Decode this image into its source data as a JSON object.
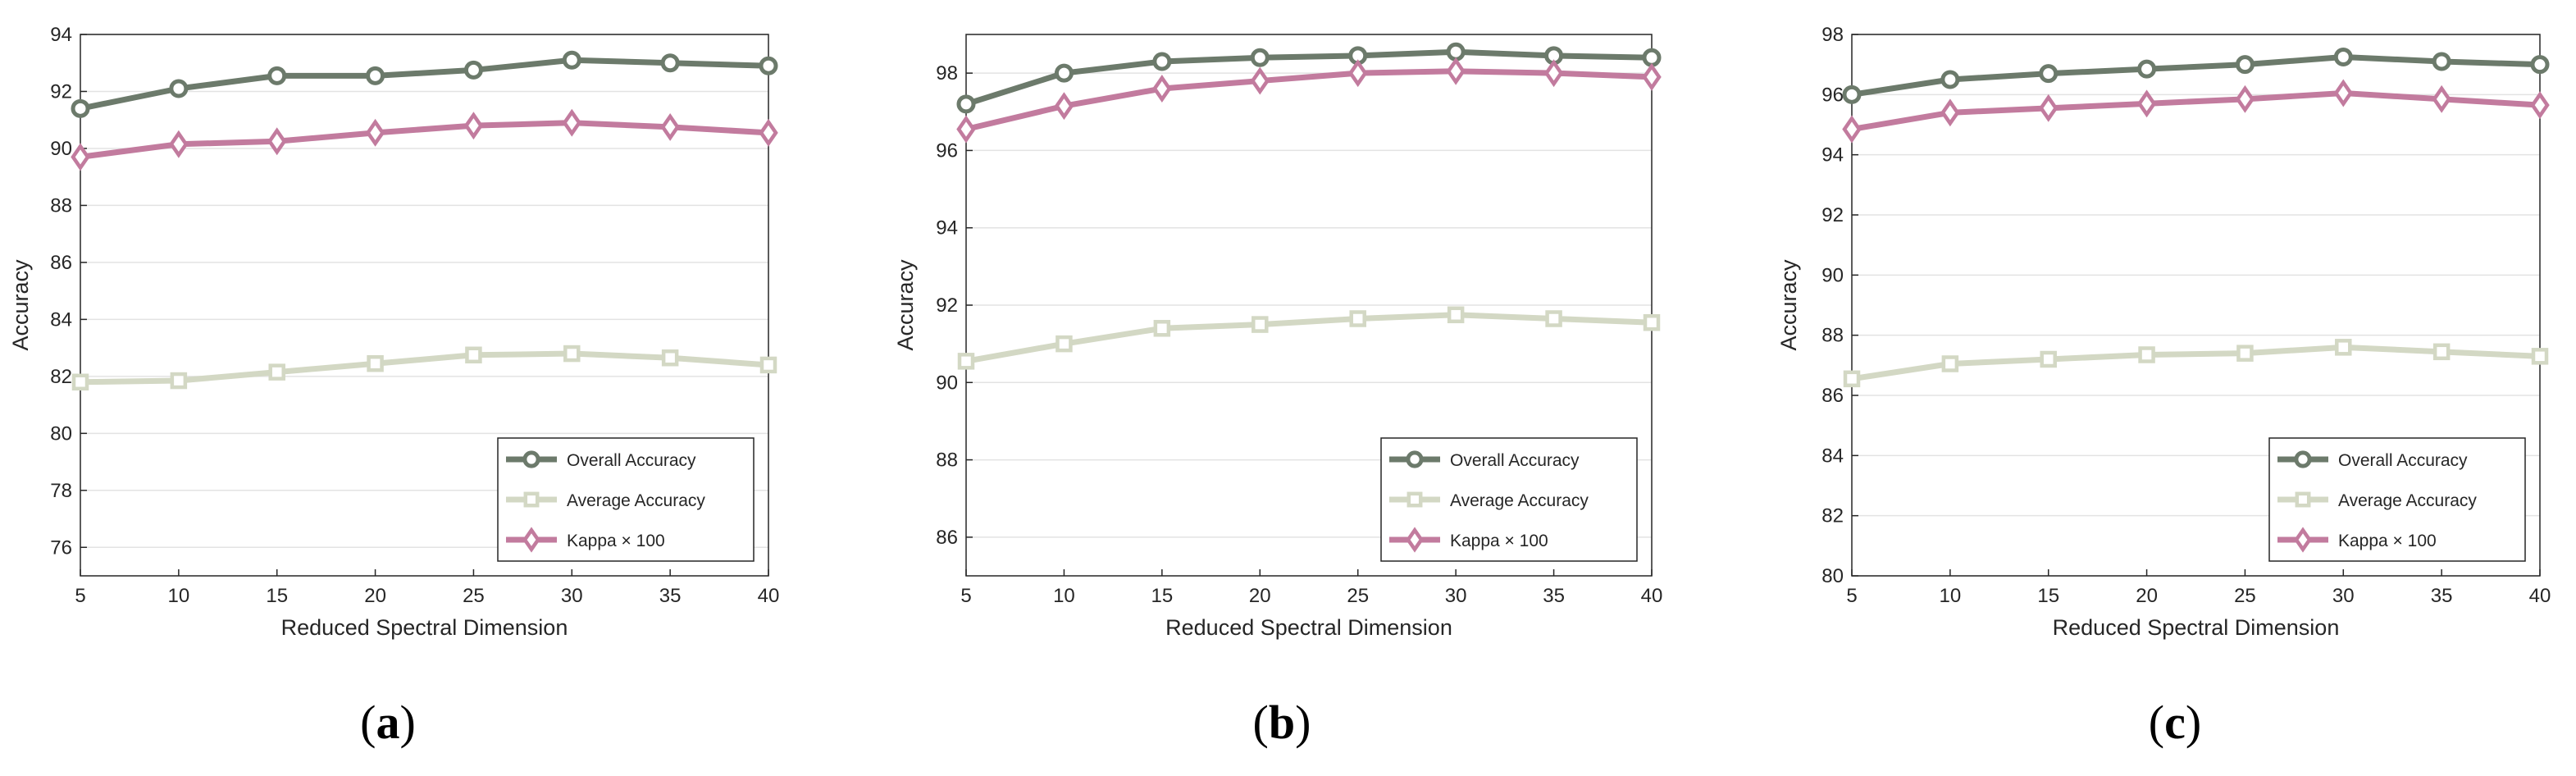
{
  "chart_data": [
    {
      "type": "line",
      "caption": "a",
      "xlabel": "Reduced Spectral Dimension",
      "ylabel": "Accuracy",
      "x": [
        5,
        10,
        15,
        20,
        25,
        30,
        35,
        40
      ],
      "xlim": [
        5,
        40
      ],
      "ylim": [
        75,
        94
      ],
      "yticks": [
        76,
        78,
        80,
        82,
        84,
        86,
        88,
        90,
        92,
        94
      ],
      "grid": true,
      "legend_location": "bottom-right",
      "series": [
        {
          "name": "Overall Accuracy",
          "marker": "circle",
          "color": "#6c7a6b",
          "values": [
            91.4,
            92.1,
            92.55,
            92.55,
            92.75,
            93.1,
            93.0,
            92.9
          ]
        },
        {
          "name": "Average Accuracy",
          "marker": "square",
          "color": "#d3d8c4",
          "values": [
            81.8,
            81.85,
            82.15,
            82.45,
            82.75,
            82.8,
            82.65,
            82.4
          ]
        },
        {
          "name": "Kappa × 100",
          "marker": "diamond",
          "color": "#c27b9e",
          "values": [
            89.7,
            90.15,
            90.25,
            90.55,
            90.8,
            90.9,
            90.75,
            90.55
          ]
        }
      ]
    },
    {
      "type": "line",
      "caption": "b",
      "xlabel": "Reduced Spectral Dimension",
      "ylabel": "Accuracy",
      "x": [
        5,
        10,
        15,
        20,
        25,
        30,
        35,
        40
      ],
      "xlim": [
        5,
        40
      ],
      "ylim": [
        85,
        99
      ],
      "yticks": [
        86,
        88,
        90,
        92,
        94,
        96,
        98
      ],
      "grid": true,
      "legend_location": "bottom-right",
      "series": [
        {
          "name": "Overall Accuracy",
          "marker": "circle",
          "color": "#6c7a6b",
          "values": [
            97.2,
            98.0,
            98.3,
            98.4,
            98.45,
            98.55,
            98.45,
            98.4
          ]
        },
        {
          "name": "Average Accuracy",
          "marker": "square",
          "color": "#d3d8c4",
          "values": [
            90.55,
            91.0,
            91.4,
            91.5,
            91.65,
            91.75,
            91.65,
            91.55
          ]
        },
        {
          "name": "Kappa × 100",
          "marker": "diamond",
          "color": "#c27b9e",
          "values": [
            96.55,
            97.15,
            97.6,
            97.8,
            98.0,
            98.05,
            98.0,
            97.9
          ]
        }
      ]
    },
    {
      "type": "line",
      "caption": "c",
      "xlabel": "Reduced Spectral Dimension",
      "ylabel": "Accuracy",
      "x": [
        5,
        10,
        15,
        20,
        25,
        30,
        35,
        40
      ],
      "xlim": [
        5,
        40
      ],
      "ylim": [
        80,
        98
      ],
      "yticks": [
        80,
        82,
        84,
        86,
        88,
        90,
        92,
        94,
        96,
        98
      ],
      "grid": true,
      "legend_location": "bottom-right",
      "series": [
        {
          "name": "Overall Accuracy",
          "marker": "circle",
          "color": "#6c7a6b",
          "values": [
            96.0,
            96.5,
            96.7,
            96.85,
            97.0,
            97.25,
            97.1,
            97.0
          ]
        },
        {
          "name": "Average Accuracy",
          "marker": "square",
          "color": "#d3d8c4",
          "values": [
            86.55,
            87.05,
            87.2,
            87.35,
            87.4,
            87.6,
            87.45,
            87.3
          ]
        },
        {
          "name": "Kappa × 100",
          "marker": "diamond",
          "color": "#c27b9e",
          "values": [
            94.85,
            95.4,
            95.55,
            95.7,
            95.85,
            96.05,
            95.85,
            95.65
          ]
        }
      ]
    }
  ]
}
